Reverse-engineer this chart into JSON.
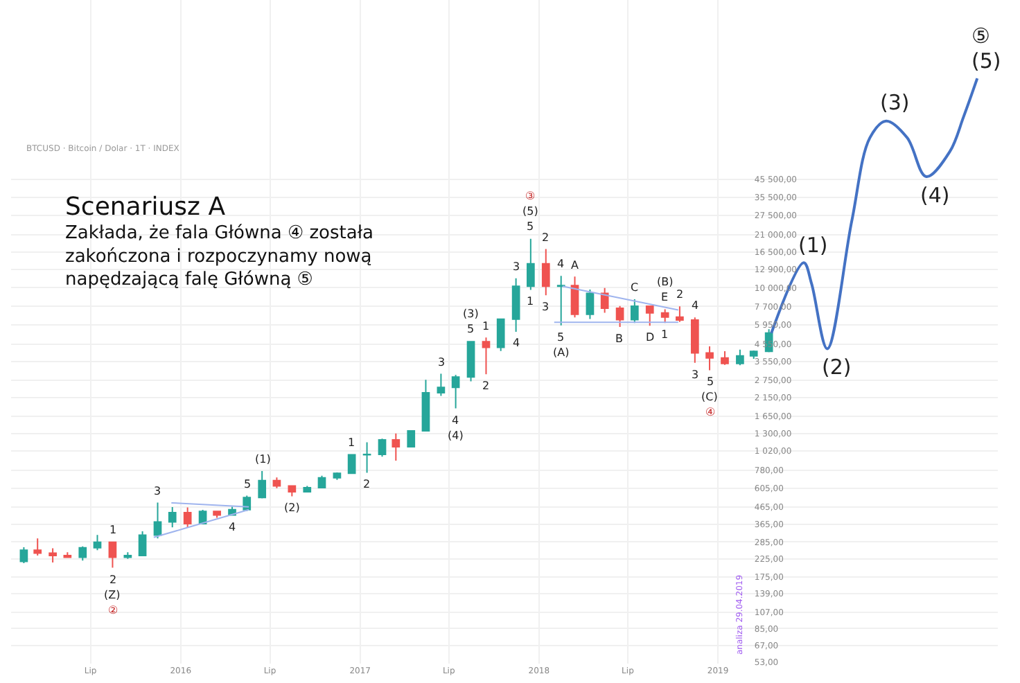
{
  "chart_data": {
    "type": "candlestick",
    "title": "Scenariusz A",
    "subtitle": "Zakłada, że fala Główna ④ została\nzakończona i rozpoczynamy nową\nnapędzającą falę Główną ⑤",
    "log": true,
    "grid": true,
    "xlim": [
      "2015-01-20",
      "2020-07-25"
    ],
    "xticks": [
      {
        "value": "2015-07-01",
        "label": "Lip"
      },
      {
        "value": "2016-01-01",
        "label": "2016"
      },
      {
        "value": "2016-07-01",
        "label": "Lip"
      },
      {
        "value": "2017-01-01",
        "label": "2017"
      },
      {
        "value": "2017-07-01",
        "label": "Lip"
      },
      {
        "value": "2018-01-01",
        "label": "2018"
      },
      {
        "value": "2018-07-01",
        "label": "Lip"
      },
      {
        "value": "2019-01-01",
        "label": "2019"
      }
    ],
    "ylim": [
      52,
      560000
    ],
    "yticks": [
      {
        "value": 53,
        "label": "53,00"
      },
      {
        "value": 67,
        "label": "67,00"
      },
      {
        "value": 85,
        "label": "85,00"
      },
      {
        "value": 107,
        "label": "107,00"
      },
      {
        "value": 139,
        "label": "139,00"
      },
      {
        "value": 175,
        "label": "175,00"
      },
      {
        "value": 225,
        "label": "225,00"
      },
      {
        "value": 285,
        "label": "285,00"
      },
      {
        "value": 365,
        "label": "365,00"
      },
      {
        "value": 465,
        "label": "465,00"
      },
      {
        "value": 605,
        "label": "605,00"
      },
      {
        "value": 780,
        "label": "780,00"
      },
      {
        "value": 1020,
        "label": "1 020,00"
      },
      {
        "value": 1300,
        "label": "1 300,00"
      },
      {
        "value": 1650,
        "label": "1 650,00"
      },
      {
        "value": 2150,
        "label": "2 150,00"
      },
      {
        "value": 2750,
        "label": "2 750,00"
      },
      {
        "value": 3550,
        "label": "3 550,00"
      },
      {
        "value": 4550,
        "label": "4 550,00"
      },
      {
        "value": 5950,
        "label": "5 950,00"
      },
      {
        "value": 7700,
        "label": "7 700,00"
      },
      {
        "value": 10000,
        "label": "10 000,00"
      },
      {
        "value": 12900,
        "label": "12 900,00"
      },
      {
        "value": 16500,
        "label": "16 500,00"
      },
      {
        "value": 21000,
        "label": "21 000,00"
      },
      {
        "value": 27500,
        "label": "27 500,00"
      },
      {
        "value": 35500,
        "label": "35 500,00"
      },
      {
        "value": 45500,
        "label": "45 500,00"
      }
    ],
    "series": [
      {
        "x": [
          "2015-02-15",
          "2015-03-15",
          "2015-04-15",
          "2015-05-15",
          "2015-06-15",
          "2015-07-15",
          "2015-08-15",
          "2015-09-15",
          "2015-10-15",
          "2015-11-15",
          "2015-12-15",
          "2016-01-15",
          "2016-02-15",
          "2016-03-15",
          "2016-04-15",
          "2016-05-15",
          "2016-06-15",
          "2016-07-15",
          "2016-08-15",
          "2016-09-15",
          "2016-10-15",
          "2016-11-15",
          "2016-12-15",
          "2017-01-15",
          "2017-02-15",
          "2017-03-15",
          "2017-04-15",
          "2017-05-15",
          "2017-06-15",
          "2017-07-15",
          "2017-08-15",
          "2017-09-15",
          "2017-10-15",
          "2017-11-15",
          "2017-12-15",
          "2018-01-15",
          "2018-02-15",
          "2018-03-15",
          "2018-04-15",
          "2018-05-15",
          "2018-06-15",
          "2018-07-15",
          "2018-08-15",
          "2018-09-15",
          "2018-10-15",
          "2018-11-15",
          "2018-12-15",
          "2019-01-15",
          "2019-02-15",
          "2019-03-15",
          "2019-04-15"
        ],
        "ohlc": [
          [
            217,
            265,
            212,
            254
          ],
          [
            254,
            300,
            236,
            244
          ],
          [
            244,
            261,
            214,
            236
          ],
          [
            236,
            247,
            228,
            230
          ],
          [
            230,
            268,
            220,
            263
          ],
          [
            263,
            315,
            254,
            284
          ],
          [
            284,
            285,
            199,
            230
          ],
          [
            230,
            247,
            225,
            236
          ],
          [
            236,
            331,
            236,
            314
          ],
          [
            314,
            495,
            300,
            377
          ],
          [
            377,
            465,
            350,
            430
          ],
          [
            430,
            462,
            350,
            368
          ],
          [
            368,
            447,
            365,
            437
          ],
          [
            437,
            440,
            400,
            416
          ],
          [
            416,
            467,
            412,
            448
          ],
          [
            448,
            545,
            440,
            531
          ],
          [
            531,
            770,
            525,
            673
          ],
          [
            673,
            704,
            605,
            624
          ],
          [
            624,
            627,
            540,
            575
          ],
          [
            575,
            625,
            570,
            609
          ],
          [
            609,
            720,
            605,
            700
          ],
          [
            700,
            755,
            680,
            745
          ],
          [
            745,
            975,
            740,
            965
          ],
          [
            965,
            1150,
            750,
            970
          ],
          [
            970,
            1210,
            940,
            1190
          ],
          [
            1190,
            1300,
            890,
            1080
          ],
          [
            1080,
            1360,
            1075,
            1350
          ],
          [
            1350,
            2760,
            1340,
            2300
          ],
          [
            2300,
            3000,
            2200,
            2480
          ],
          [
            2480,
            2950,
            1850,
            2870
          ],
          [
            2870,
            4750,
            2700,
            4700
          ],
          [
            4700,
            4980,
            2980,
            4340
          ],
          [
            4340,
            6450,
            4120,
            6440
          ],
          [
            6440,
            11400,
            5400,
            10200
          ],
          [
            10200,
            19800,
            9700,
            14000
          ],
          [
            14000,
            17200,
            9000,
            10200
          ],
          [
            10200,
            11800,
            5900,
            10300
          ],
          [
            10300,
            11700,
            6600,
            6900
          ],
          [
            6900,
            9750,
            6450,
            9250
          ],
          [
            9250,
            9950,
            7050,
            7500
          ],
          [
            7500,
            7750,
            5780,
            6400
          ],
          [
            6400,
            8500,
            6100,
            7730
          ],
          [
            7730,
            7760,
            5880,
            7030
          ],
          [
            7030,
            7400,
            6100,
            6630
          ],
          [
            6630,
            7700,
            6200,
            6370
          ],
          [
            6370,
            6600,
            3500,
            4020
          ],
          [
            4020,
            4400,
            3150,
            3740
          ],
          [
            3740,
            4110,
            3400,
            3460
          ],
          [
            3460,
            4200,
            3380,
            3850
          ],
          [
            3850,
            4150,
            3700,
            4100
          ],
          [
            4100,
            5600,
            4050,
            5300
          ]
        ],
        "colors": [
          "#26a69a",
          "#ef5350",
          "#ef5350",
          "#ef5350",
          "#26a69a",
          "#26a69a",
          "#ef5350",
          "#26a69a",
          "#26a69a",
          "#26a69a",
          "#26a69a",
          "#ef5350",
          "#26a69a",
          "#ef5350",
          "#26a69a",
          "#26a69a",
          "#26a69a",
          "#ef5350",
          "#ef5350",
          "#26a69a",
          "#26a69a",
          "#26a69a",
          "#26a69a",
          "#26a69a",
          "#26a69a",
          "#ef5350",
          "#26a69a",
          "#26a69a",
          "#26a69a",
          "#26a69a",
          "#26a69a",
          "#ef5350",
          "#26a69a",
          "#26a69a",
          "#26a69a",
          "#ef5350",
          "#26a69a",
          "#ef5350",
          "#26a69a",
          "#ef5350",
          "#ef5350",
          "#26a69a",
          "#ef5350",
          "#ef5350",
          "#ef5350",
          "#ef5350",
          "#ef5350",
          "#ef5350",
          "#26a69a",
          "#26a69a",
          "#26a69a"
        ]
      },
      {
        "type": "line",
        "color": "#4472c4",
        "x": [
          "2019-04-20",
          "2019-06-25",
          "2019-07-11",
          "2019-08-12",
          "2019-10-01",
          "2019-11-07",
          "2019-12-10",
          "2020-01-22",
          "2020-03-01",
          "2020-04-18",
          "2020-05-16",
          "2020-06-13"
        ],
        "values": [
          5300,
          14200,
          10600,
          4260,
          25400,
          81500,
          103000,
          81500,
          47300,
          67100,
          109000,
          187000
        ]
      },
      {
        "type": "line",
        "color": "#9fb4ee",
        "x": [
          "2018-02-18",
          "2018-10-12"
        ],
        "values": [
          10200,
          7330
        ]
      },
      {
        "type": "line",
        "color": "#9fb4ee",
        "x": [
          "2018-02-01",
          "2018-10-12"
        ],
        "values": [
          6170,
          6170
        ]
      },
      {
        "type": "line",
        "color": "#9fb4ee",
        "x": [
          "2015-12-13",
          "2016-05-19"
        ],
        "values": [
          493,
          466
        ]
      },
      {
        "type": "line",
        "color": "#9fb4ee",
        "x": [
          "2015-11-07",
          "2016-05-19"
        ],
        "values": [
          304,
          448
        ]
      }
    ],
    "annotations": [
      "BTCUSD · Bitcoin / Dolar · 1T · INDEX",
      "analiza 29.04.2019",
      {
        "text": "1",
        "x": "2015-08-15",
        "y": 285
      },
      {
        "text": "2",
        "x": "2015-08-15",
        "y": 199
      },
      {
        "text": "3",
        "x": "2015-11-15",
        "y": 495
      },
      {
        "text": "4",
        "x": "2016-04-15",
        "y": 412
      },
      {
        "text": "5",
        "x": "2016-05-15",
        "y": 545
      },
      {
        "text": "(1)",
        "x": "2016-06-15",
        "y": 770
      },
      {
        "text": "(2)",
        "x": "2016-08-15",
        "y": 540
      },
      {
        "text": "(Z)",
        "x": "2015-08-15",
        "y": 199
      },
      "②",
      {
        "text": "1",
        "x": "2016-12-15",
        "y": 975
      },
      {
        "text": "2",
        "x": "2017-01-15",
        "y": 750
      },
      {
        "text": "3",
        "x": "2017-06-15",
        "y": 3000
      },
      {
        "text": "4",
        "x": "2017-07-15",
        "y": 1850
      },
      {
        "text": "5",
        "x": "2017-08-15",
        "y": 4750
      },
      {
        "text": "(3)",
        "x": "2017-08-15",
        "y": 4750
      },
      {
        "text": "(4)",
        "x": "2017-07-15",
        "y": 1850
      },
      {
        "text": "1",
        "x": "2017-09-15",
        "y": 4980
      },
      {
        "text": "2",
        "x": "2017-09-15",
        "y": 2980
      },
      {
        "text": "3",
        "x": "2017-11-15",
        "y": 11400
      },
      {
        "text": "4",
        "x": "2017-11-15",
        "y": 5400
      },
      {
        "text": "5",
        "x": "2017-12-15",
        "y": 19800
      },
      {
        "text": "(5)",
        "x": "2017-12-15",
        "y": 19800
      },
      "③",
      {
        "text": "2",
        "x": "2018-01-15",
        "y": 17200
      },
      {
        "text": "4",
        "x": "2018-02-15",
        "y": 11800
      },
      {
        "text": "1",
        "x": "2017-12-15",
        "y": 9700
      },
      {
        "text": "3",
        "x": "2018-01-15",
        "y": 9000
      },
      {
        "text": "A",
        "x": "2018-03-15",
        "y": 11700
      },
      {
        "text": "5",
        "x": "2018-02-15",
        "y": 5900
      },
      {
        "text": "(A)",
        "x": "2018-02-15",
        "y": 5900
      },
      {
        "text": "B",
        "x": "2018-06-15",
        "y": 5780
      },
      {
        "text": "C",
        "x": "2018-07-15",
        "y": 8500
      },
      {
        "text": "D",
        "x": "2018-08-15",
        "y": 5880
      },
      {
        "text": "E",
        "x": "2018-09-15",
        "y": 7400
      },
      {
        "text": "1",
        "x": "2018-09-15",
        "y": 6100
      },
      {
        "text": "2",
        "x": "2018-10-15",
        "y": 7700
      },
      {
        "text": "(B)",
        "x": "2018-09-15",
        "y": 7400
      },
      {
        "text": "4",
        "x": "2018-11-15",
        "y": 6600
      },
      {
        "text": "3",
        "x": "2018-11-15",
        "y": 3500
      },
      {
        "text": "5",
        "x": "2018-12-15",
        "y": 3150
      },
      {
        "text": "(C)",
        "x": "2018-12-15",
        "y": 3150
      },
      "④",
      {
        "text": "(1)",
        "x": "2019-06-25",
        "y": 14200
      },
      {
        "text": "(2)",
        "x": "2019-08-12",
        "y": 4260
      },
      {
        "text": "(3)",
        "x": "2019-12-10",
        "y": 103000
      },
      {
        "text": "(4)",
        "x": "2020-03-01",
        "y": 47300
      },
      {
        "text": "(5)",
        "x": "2020-06-13",
        "y": 187000
      },
      {
        "text": "⑤",
        "x": "2020-06-13",
        "y": 187000
      }
    ]
  }
}
